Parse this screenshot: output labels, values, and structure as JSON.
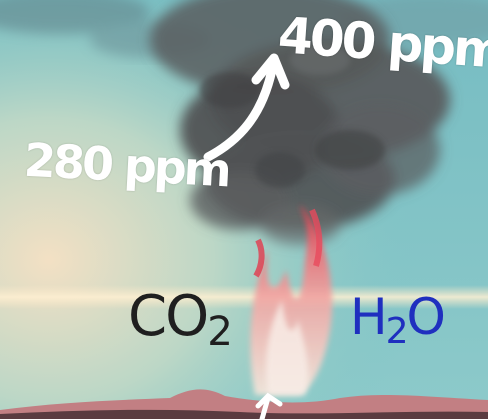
{
  "labels": {
    "after": "400 ppm",
    "before": "280 ppm",
    "co2_main": "CO",
    "co2_sub": "2",
    "h2o_h": "H",
    "h2o_sub": "2",
    "h2o_o": "O"
  },
  "colors": {
    "sky": "#7fc6c6",
    "smoke": "#4f5152",
    "flame": "#e8475a",
    "co2_text": "#1f1f1f",
    "h2o_text": "#1f2fbf",
    "annotation_text": "#ffffff"
  }
}
